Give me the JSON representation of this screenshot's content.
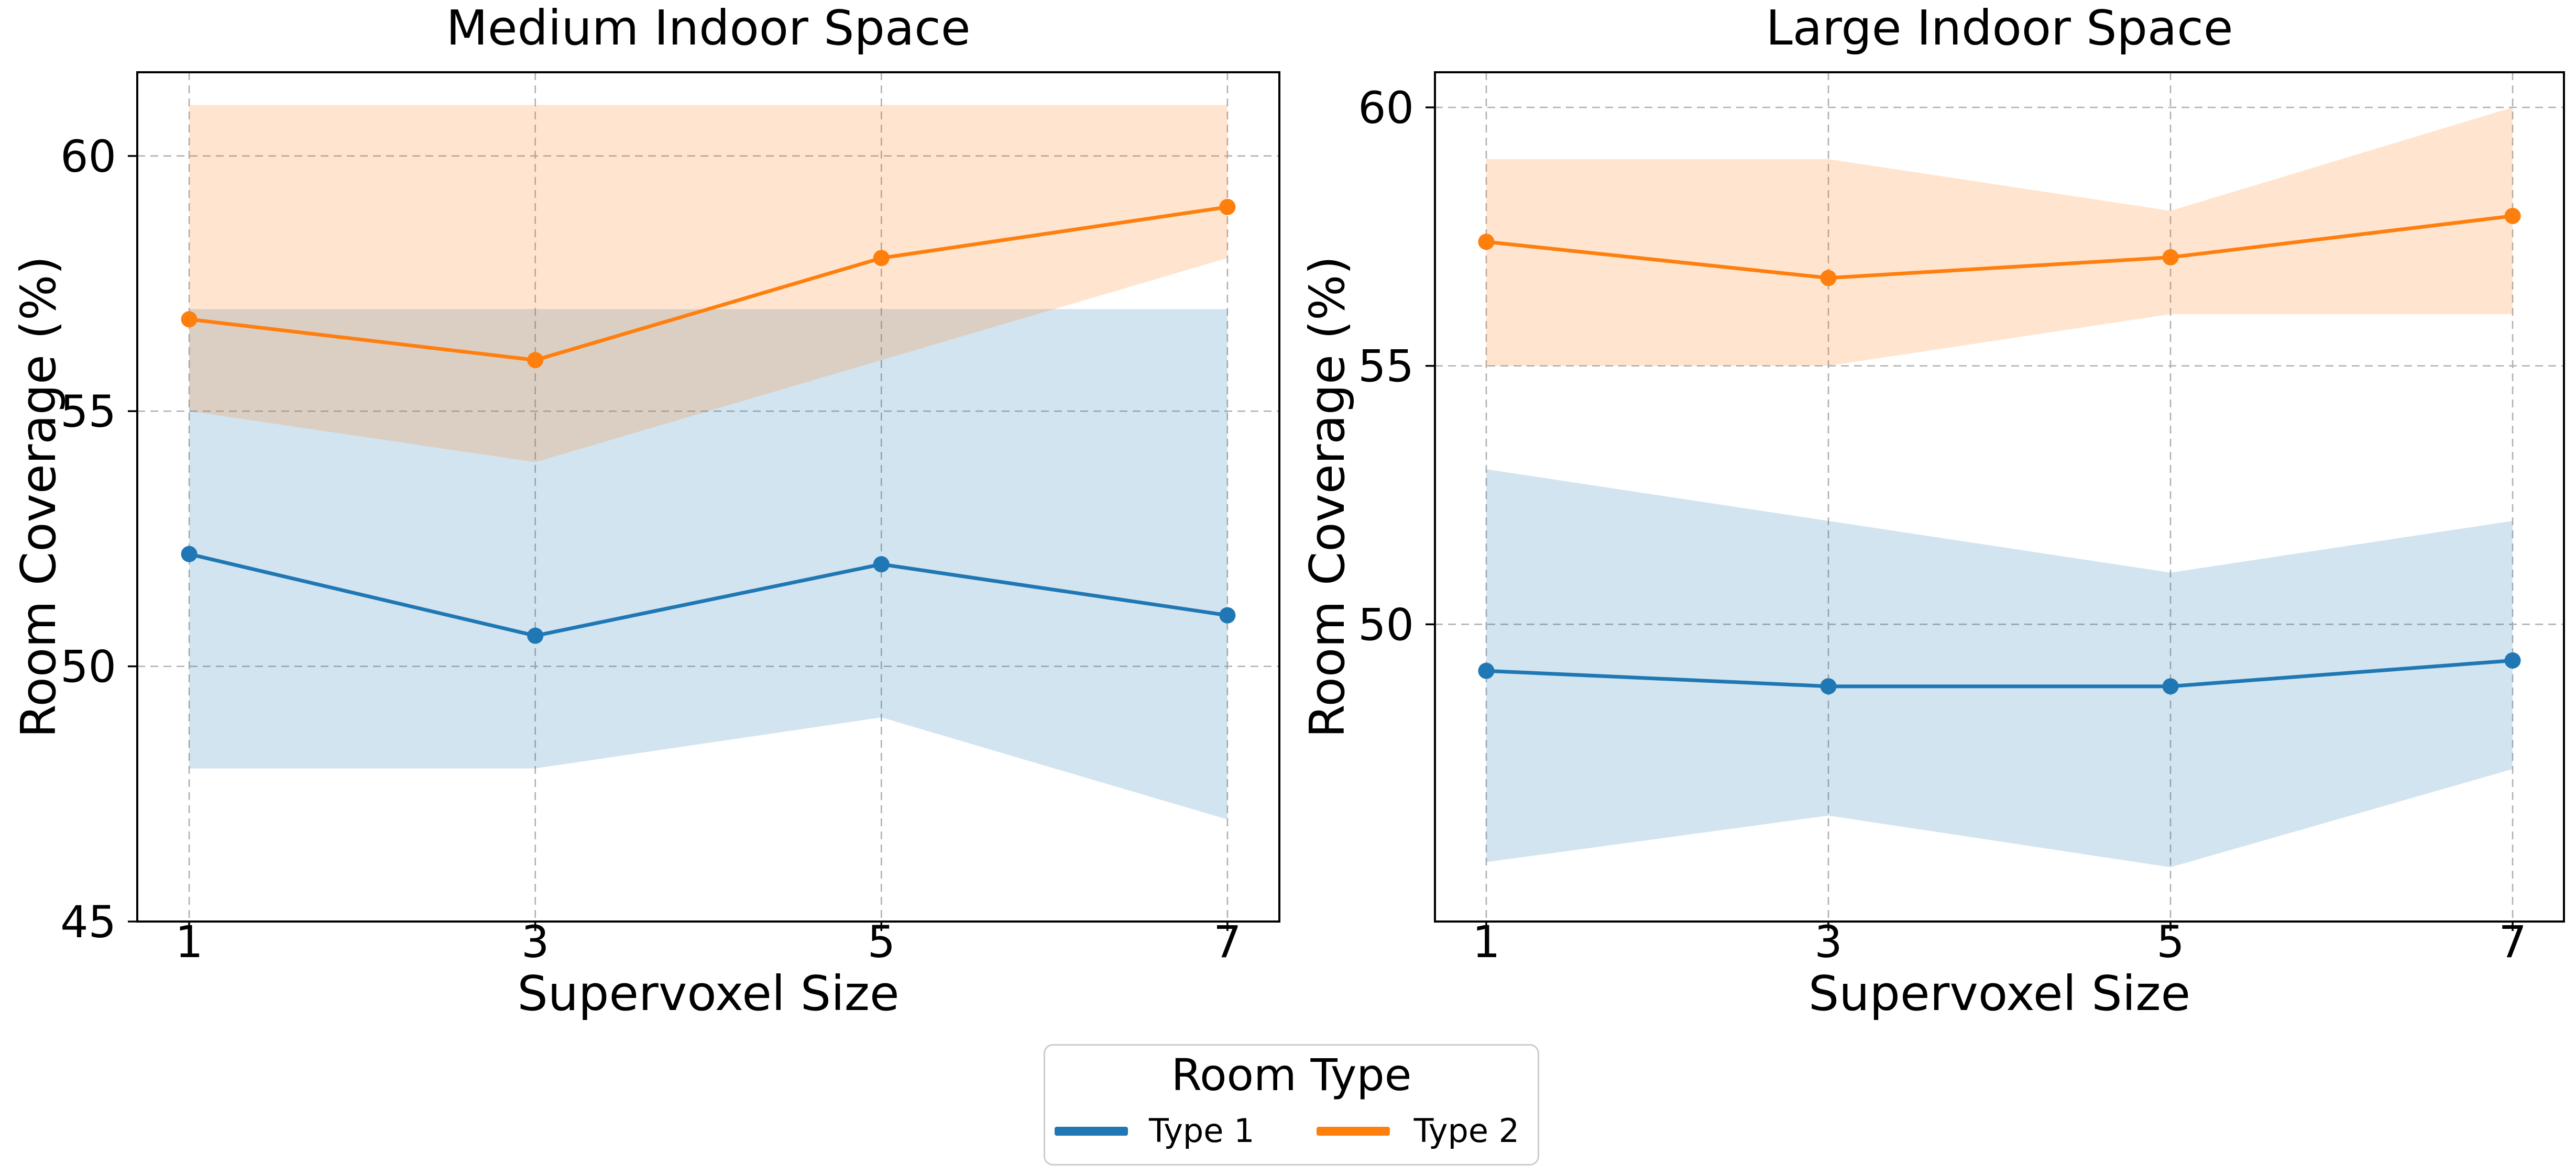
{
  "figure": {
    "background": "#ffffff",
    "grid_color": "#b0b0b0",
    "spine_color": "#000000"
  },
  "legend": {
    "title": "Room Type",
    "position": "bottom-center",
    "items": [
      {
        "label": "Type 1",
        "color": "#1f77b4"
      },
      {
        "label": "Type 2",
        "color": "#ff7f0e"
      }
    ]
  },
  "chart_data": [
    {
      "type": "line",
      "title": "Medium Indoor Space",
      "xlabel": "Supervoxel Size",
      "ylabel": "Room Coverage (%)",
      "x": [
        1,
        3,
        5,
        7
      ],
      "xticks": [
        1,
        3,
        5,
        7
      ],
      "yticks": [
        45,
        50,
        55,
        60
      ],
      "xlim": [
        0.7,
        7.3
      ],
      "ylim": [
        45,
        61.64
      ],
      "grid": true,
      "series": [
        {
          "name": "Type 1",
          "color": "#1f77b4",
          "values": [
            52.2,
            50.6,
            52.0,
            51.0
          ],
          "band_low": [
            48,
            48,
            49,
            47
          ],
          "band_high": [
            57,
            57,
            57,
            57
          ]
        },
        {
          "name": "Type 2",
          "color": "#ff7f0e",
          "values": [
            56.8,
            56.0,
            58.0,
            59.0
          ],
          "band_low": [
            55,
            54,
            56,
            58
          ],
          "band_high": [
            61,
            61,
            61,
            61
          ]
        }
      ]
    },
    {
      "type": "line",
      "title": "Large Indoor Space",
      "xlabel": "Supervoxel Size",
      "ylabel": "Room Coverage (%)",
      "x": [
        1,
        3,
        5,
        7
      ],
      "xticks": [
        1,
        3,
        5,
        7
      ],
      "yticks": [
        50,
        55,
        60
      ],
      "xlim": [
        0.7,
        7.3
      ],
      "ylim": [
        44.25,
        60.68
      ],
      "grid": true,
      "series": [
        {
          "name": "Type 1",
          "color": "#1f77b4",
          "values": [
            49.1,
            48.8,
            48.8,
            49.3
          ],
          "band_low": [
            45.4,
            46.3,
            45.3,
            47.2
          ],
          "band_high": [
            53,
            52,
            51,
            52
          ]
        },
        {
          "name": "Type 2",
          "color": "#ff7f0e",
          "values": [
            57.4,
            56.7,
            57.1,
            57.9
          ],
          "band_low": [
            55,
            55,
            56,
            56
          ],
          "band_high": [
            59,
            59,
            58,
            60
          ]
        }
      ]
    }
  ]
}
